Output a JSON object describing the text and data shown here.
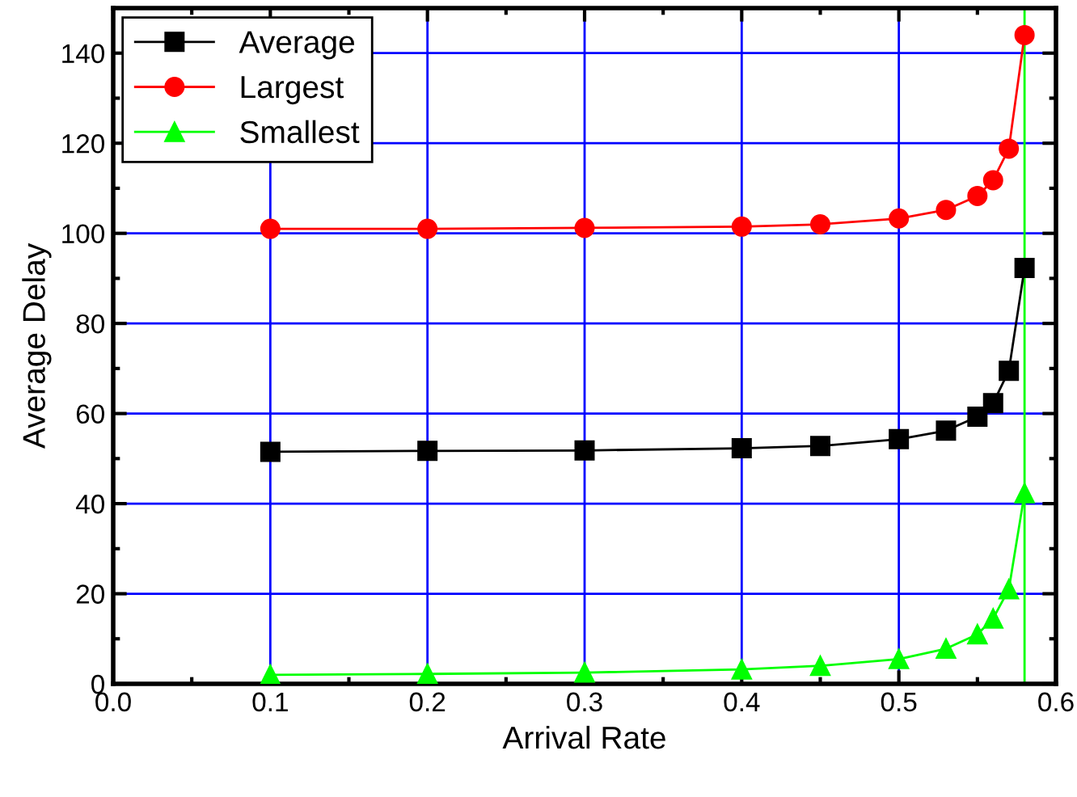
{
  "chart_data": {
    "type": "line",
    "xlabel": "Arrival Rate",
    "ylabel": "Average Delay",
    "x": [
      0.1,
      0.2,
      0.3,
      0.4,
      0.45,
      0.5,
      0.53,
      0.55,
      0.56,
      0.57,
      0.58
    ],
    "series": [
      {
        "name": "Average",
        "color": "#000000",
        "marker": "square",
        "values": [
          51.5,
          51.7,
          51.8,
          52.3,
          52.8,
          54.3,
          56.2,
          59.3,
          62.3,
          69.5,
          92.3
        ]
      },
      {
        "name": "Largest",
        "color": "#ff0000",
        "marker": "circle",
        "values": [
          101,
          101,
          101.2,
          101.5,
          102,
          103.3,
          105.2,
          108.3,
          111.8,
          118.8,
          144
        ]
      },
      {
        "name": "Smallest",
        "color": "#00ff00",
        "marker": "triangle",
        "values": [
          2,
          2.2,
          2.5,
          3.2,
          4,
          5.5,
          7.8,
          11,
          14.5,
          21,
          42.3
        ]
      }
    ],
    "ref_lines": [
      {
        "axis": "x",
        "value": 0.58,
        "color": "#00ff00"
      }
    ],
    "xlim": [
      0,
      0.6
    ],
    "xticks": [
      {
        "value": 0,
        "label": "0.0"
      },
      0.1,
      0.2,
      0.3,
      0.4,
      0.5,
      0.6
    ],
    "ylim": [
      0,
      150
    ],
    "yticks": [
      0,
      20,
      40,
      60,
      80,
      100,
      120,
      140
    ],
    "grid": true,
    "legend": "top left"
  }
}
